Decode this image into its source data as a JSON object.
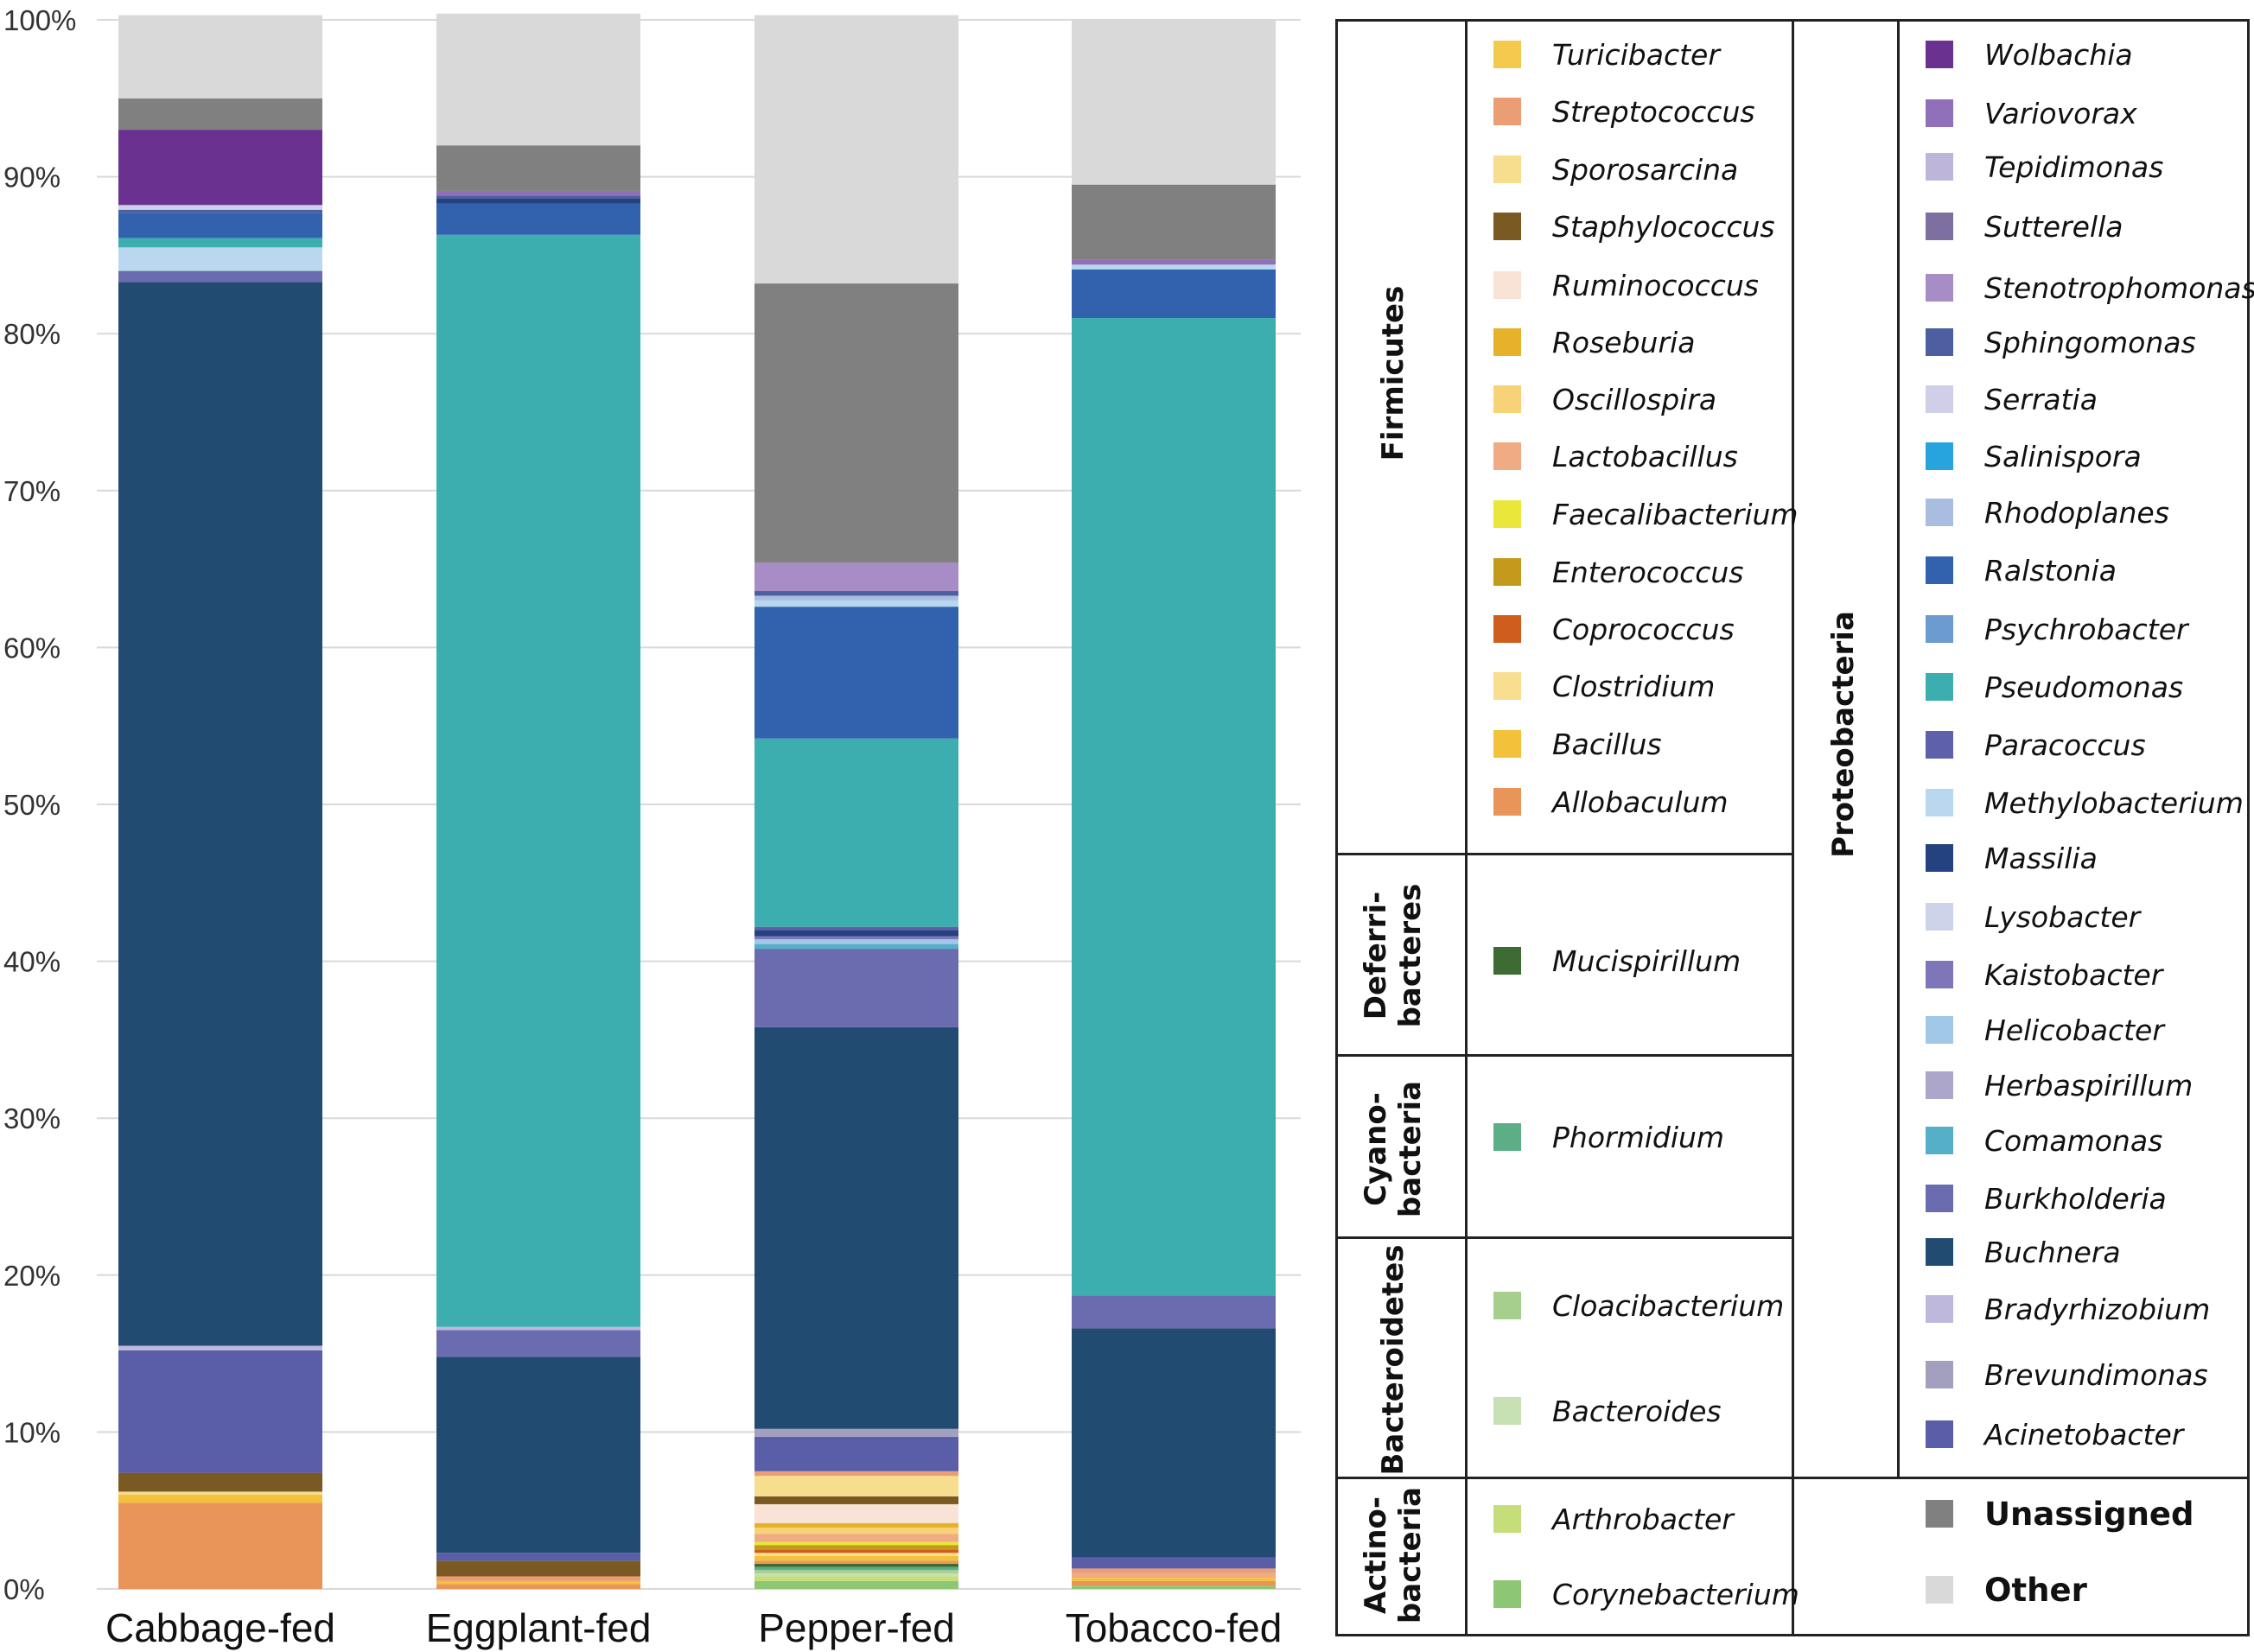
{
  "chart_data": {
    "type": "bar",
    "stacked": true,
    "ylim": [
      0,
      100
    ],
    "yticks": [
      "0%",
      "10%",
      "20%",
      "30%",
      "40%",
      "50%",
      "60%",
      "70%",
      "80%",
      "90%",
      "100%"
    ],
    "categories": [
      "Cabbage-fed",
      "Eggplant-fed",
      "Pepper-fed",
      "Tobacco-fed"
    ],
    "grid": true,
    "stacks": [
      [
        {
          "label": "Allobaculum",
          "color": "#E9955A",
          "value": 5.5
        },
        {
          "label": "Bacillus",
          "color": "#F3C23A",
          "value": 0.5
        },
        {
          "label": "Sporosarcina",
          "color": "#F7DD8E",
          "value": 0.2
        },
        {
          "label": "Staphylococcus",
          "color": "#7A5A22",
          "value": 1.2
        },
        {
          "label": "Acinetobacter",
          "color": "#5A5EA8",
          "value": 7.8
        },
        {
          "label": "Bradyrhizobium",
          "color": "#BDB8DC",
          "value": 0.3
        },
        {
          "label": "Buchnera",
          "color": "#224B72",
          "value": 67.8
        },
        {
          "label": "Burkholderia",
          "color": "#6B6CB0",
          "value": 0.7
        },
        {
          "label": "Methylobacterium",
          "color": "#B9D8F0",
          "value": 1.5
        },
        {
          "label": "Pseudomonas",
          "color": "#3DAEB0",
          "value": 0.6
        },
        {
          "label": "Ralstonia",
          "color": "#3262AE",
          "value": 1.6
        },
        {
          "label": "Sphingomonas",
          "color": "#4D5FA0",
          "value": 0.2
        },
        {
          "label": "Serratia",
          "color": "#CFCFEA",
          "value": 0.3
        },
        {
          "label": "Wolbachia",
          "color": "#6A3190",
          "value": 4.8
        },
        {
          "label": "Unassigned",
          "color": "#808080",
          "value": 2.0
        },
        {
          "label": "Other",
          "color": "#D9D9D9",
          "value": 5.3
        }
      ],
      [
        {
          "label": "Allobaculum",
          "color": "#E9955A",
          "value": 0.3
        },
        {
          "label": "Bacillus",
          "color": "#F3C23A",
          "value": 0.2
        },
        {
          "label": "Streptococcus",
          "color": "#EB9E73",
          "value": 0.3
        },
        {
          "label": "Staphylococcus",
          "color": "#7A5A22",
          "value": 1.0
        },
        {
          "label": "Acinetobacter",
          "color": "#5A5EA8",
          "value": 0.5
        },
        {
          "label": "Buchnera",
          "color": "#224B72",
          "value": 12.5
        },
        {
          "label": "Burkholderia",
          "color": "#6B6CB0",
          "value": 1.7
        },
        {
          "label": "Bradyrhizobium",
          "color": "#BDB8DC",
          "value": 0.2
        },
        {
          "label": "Pseudomonas",
          "color": "#3DAEB0",
          "value": 69.6
        },
        {
          "label": "Ralstonia",
          "color": "#3262AE",
          "value": 2.0
        },
        {
          "label": "Massilia",
          "color": "#23427F",
          "value": 0.3
        },
        {
          "label": "Sphingomonas",
          "color": "#4D5FA0",
          "value": 0.2
        },
        {
          "label": "Variovorax",
          "color": "#9070B8",
          "value": 0.3
        },
        {
          "label": "Unassigned",
          "color": "#808080",
          "value": 2.9
        },
        {
          "label": "Other",
          "color": "#D9D9D9",
          "value": 8.4
        }
      ],
      [
        {
          "label": "Corynebacterium",
          "color": "#8DC774",
          "value": 0.5
        },
        {
          "label": "Arthrobacter",
          "color": "#C5DE7A",
          "value": 0.3
        },
        {
          "label": "Bacteroides",
          "color": "#C7E0B4",
          "value": 0.2
        },
        {
          "label": "Cloacibacterium",
          "color": "#A6CF8E",
          "value": 0.2
        },
        {
          "label": "Phormidium",
          "color": "#5BAE86",
          "value": 0.2
        },
        {
          "label": "Mucispirillum",
          "color": "#3E6B33",
          "value": 0.2
        },
        {
          "label": "Allobaculum",
          "color": "#E9955A",
          "value": 0.2
        },
        {
          "label": "Bacillus",
          "color": "#F3C23A",
          "value": 0.3
        },
        {
          "label": "Clostridium",
          "color": "#F8DE8E",
          "value": 0.2
        },
        {
          "label": "Coprococcus",
          "color": "#CF5E1E",
          "value": 0.2
        },
        {
          "label": "Enterococcus",
          "color": "#C39A1B",
          "value": 0.3
        },
        {
          "label": "Faecalibacterium",
          "color": "#EAE73A",
          "value": 0.2
        },
        {
          "label": "Lactobacillus",
          "color": "#EFAC84",
          "value": 0.5
        },
        {
          "label": "Oscillospira",
          "color": "#F7D276",
          "value": 0.4
        },
        {
          "label": "Roseburia",
          "color": "#E5B22A",
          "value": 0.3
        },
        {
          "label": "Ruminococcus",
          "color": "#F8E3D6",
          "value": 1.2
        },
        {
          "label": "Staphylococcus",
          "color": "#7A5A22",
          "value": 0.5
        },
        {
          "label": "Sporosarcina",
          "color": "#F7DD8E",
          "value": 1.3
        },
        {
          "label": "Streptococcus",
          "color": "#EB9E73",
          "value": 0.3
        },
        {
          "label": "Acinetobacter",
          "color": "#5A5EA8",
          "value": 2.2
        },
        {
          "label": "Brevundimonas",
          "color": "#A29FBF",
          "value": 0.5
        },
        {
          "label": "Buchnera",
          "color": "#224B72",
          "value": 25.6
        },
        {
          "label": "Burkholderia",
          "color": "#6B6CB0",
          "value": 5.0
        },
        {
          "label": "Comamonas",
          "color": "#55AFC8",
          "value": 0.3
        },
        {
          "label": "Helicobacter",
          "color": "#A2C8E8",
          "value": 0.3
        },
        {
          "label": "Kaistobacter",
          "color": "#7D76B8",
          "value": 0.2
        },
        {
          "label": "Massilia",
          "color": "#23427F",
          "value": 0.4
        },
        {
          "label": "Paracoccus",
          "color": "#5E61AA",
          "value": 0.2
        },
        {
          "label": "Pseudomonas",
          "color": "#3DAEB0",
          "value": 12.0
        },
        {
          "label": "Ralstonia",
          "color": "#3262AE",
          "value": 8.4
        },
        {
          "label": "Methylobacterium",
          "color": "#B9D8F0",
          "value": 0.4
        },
        {
          "label": "Rhodoplanes",
          "color": "#A9BDE1",
          "value": 0.3
        },
        {
          "label": "Sphingomonas",
          "color": "#4D5FA0",
          "value": 0.3
        },
        {
          "label": "Stenotrophomonas",
          "color": "#A78CC6",
          "value": 1.8
        },
        {
          "label": "Unassigned",
          "color": "#808080",
          "value": 17.8
        },
        {
          "label": "Other",
          "color": "#D9D9D9",
          "value": 17.1
        }
      ],
      [
        {
          "label": "Corynebacterium",
          "color": "#8DC774",
          "value": 0.2
        },
        {
          "label": "Allobaculum",
          "color": "#E9955A",
          "value": 0.3
        },
        {
          "label": "Bacillus",
          "color": "#F3C23A",
          "value": 0.2
        },
        {
          "label": "Lactobacillus",
          "color": "#EFAC84",
          "value": 0.3
        },
        {
          "label": "Streptococcus",
          "color": "#EB9E73",
          "value": 0.3
        },
        {
          "label": "Acinetobacter",
          "color": "#5A5EA8",
          "value": 0.7
        },
        {
          "label": "Buchnera",
          "color": "#224B72",
          "value": 14.6
        },
        {
          "label": "Burkholderia",
          "color": "#6B6CB0",
          "value": 2.1
        },
        {
          "label": "Pseudomonas",
          "color": "#3DAEB0",
          "value": 62.3
        },
        {
          "label": "Ralstonia",
          "color": "#3262AE",
          "value": 3.1
        },
        {
          "label": "Methylobacterium",
          "color": "#B9D8F0",
          "value": 0.3
        },
        {
          "label": "Variovorax",
          "color": "#9070B8",
          "value": 0.3
        },
        {
          "label": "Unassigned",
          "color": "#808080",
          "value": 4.8
        },
        {
          "label": "Other",
          "color": "#D9D9D9",
          "value": 10.5
        }
      ]
    ]
  },
  "legend": {
    "phyla": {
      "firmicutes": "Firmicutes",
      "deferribacteres": "Deferri-\nbacteres",
      "cyanobacteria": "Cyano-\nbacteria",
      "bacteroidetes": "Bacteroidetes",
      "actinobacteria": "Actino-\nbacteria",
      "proteobacteria": "Proteobacteria"
    },
    "firmicutes": [
      {
        "label": "Turicibacter",
        "color": "#F3CA4E"
      },
      {
        "label": "Streptococcus",
        "color": "#EB9E73"
      },
      {
        "label": "Sporosarcina",
        "color": "#F7DD8E"
      },
      {
        "label": "Staphylococcus",
        "color": "#7A5A22"
      },
      {
        "label": "Ruminococcus",
        "color": "#F8E3D6"
      },
      {
        "label": "Roseburia",
        "color": "#E5B22A"
      },
      {
        "label": "Oscillospira",
        "color": "#F7D276"
      },
      {
        "label": "Lactobacillus",
        "color": "#EFAC84"
      },
      {
        "label": "Faecalibacterium",
        "color": "#EAE73A"
      },
      {
        "label": "Enterococcus",
        "color": "#C39A1B"
      },
      {
        "label": "Coprococcus",
        "color": "#CF5E1E"
      },
      {
        "label": "Clostridium",
        "color": "#F8DE8E"
      },
      {
        "label": "Bacillus",
        "color": "#F3C23A"
      },
      {
        "label": "Allobaculum",
        "color": "#E9955A"
      }
    ],
    "deferribacteres": [
      {
        "label": "Mucispirillum",
        "color": "#3E6B33"
      }
    ],
    "cyanobacteria": [
      {
        "label": "Phormidium",
        "color": "#5BAE86"
      }
    ],
    "bacteroidetes": [
      {
        "label": "Cloacibacterium",
        "color": "#A6CF8E"
      },
      {
        "label": "Bacteroides",
        "color": "#C7E0B4"
      }
    ],
    "actinobacteria": [
      {
        "label": "Arthrobacter",
        "color": "#C5DE7A"
      },
      {
        "label": "Corynebacterium",
        "color": "#8DC774"
      }
    ],
    "proteobacteria": [
      {
        "label": "Wolbachia",
        "color": "#6A3190"
      },
      {
        "label": "Variovorax",
        "color": "#9070B8"
      },
      {
        "label": "Tepidimonas",
        "color": "#BDB5DA"
      },
      {
        "label": "Sutterella",
        "color": "#7D6FA0"
      },
      {
        "label": "Stenotrophomonas",
        "color": "#A78CC6"
      },
      {
        "label": "Sphingomonas",
        "color": "#4D5FA0"
      },
      {
        "label": "Serratia",
        "color": "#CFCFEA"
      },
      {
        "label": "Salinispora",
        "color": "#27A3DD"
      },
      {
        "label": "Rhodoplanes",
        "color": "#A9BDE1"
      },
      {
        "label": "Ralstonia",
        "color": "#3262AE"
      },
      {
        "label": "Psychrobacter",
        "color": "#6C9BD0"
      },
      {
        "label": "Pseudomonas",
        "color": "#3DAEB0"
      },
      {
        "label": "Paracoccus",
        "color": "#5E61AA"
      },
      {
        "label": "Methylobacterium",
        "color": "#B9D8F0"
      },
      {
        "label": "Massilia",
        "color": "#23427F"
      },
      {
        "label": "Lysobacter",
        "color": "#CDD4EA"
      },
      {
        "label": "Kaistobacter",
        "color": "#7D76B8"
      },
      {
        "label": "Helicobacter",
        "color": "#A2C8E8"
      },
      {
        "label": "Herbaspirillum",
        "color": "#ACA6CA"
      },
      {
        "label": "Comamonas",
        "color": "#55AFC8"
      },
      {
        "label": "Burkholderia",
        "color": "#6B6CB0"
      },
      {
        "label": "Buchnera",
        "color": "#224B72"
      },
      {
        "label": "Bradyrhizobium",
        "color": "#BDB8DC"
      },
      {
        "label": "Brevundimonas",
        "color": "#A29FBF"
      },
      {
        "label": "Acinetobacter",
        "color": "#5A5EA8"
      }
    ],
    "special": [
      {
        "label": "Unassigned",
        "color": "#808080"
      },
      {
        "label": "Other",
        "color": "#D9D9D9"
      }
    ]
  }
}
